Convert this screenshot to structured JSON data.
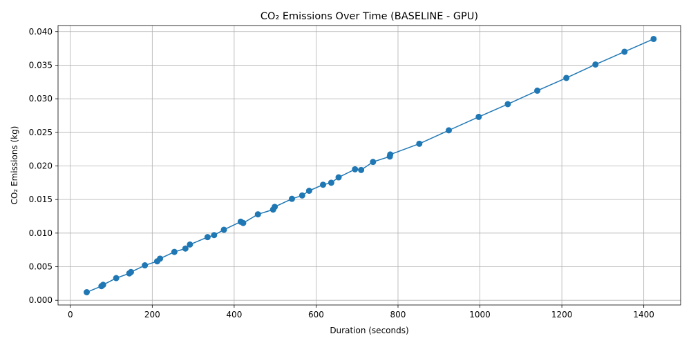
{
  "chart_data": {
    "type": "line",
    "title": "CO₂ Emissions Over Time (BASELINE - GPU)",
    "xlabel": "Duration (seconds)",
    "ylabel": "CO₂ Emissions (kg)",
    "xlim": [
      -30,
      1490
    ],
    "ylim": [
      -0.0007,
      0.0409
    ],
    "xticks": [
      0,
      200,
      400,
      600,
      800,
      1000,
      1200,
      1400
    ],
    "yticks": [
      0.0,
      0.005,
      0.01,
      0.015,
      0.02,
      0.025,
      0.03,
      0.035,
      0.04
    ],
    "xtick_labels": [
      "0",
      "200",
      "400",
      "600",
      "800",
      "1000",
      "1200",
      "1400"
    ],
    "ytick_labels": [
      "0.000",
      "0.005",
      "0.010",
      "0.015",
      "0.020",
      "0.025",
      "0.030",
      "0.035",
      "0.040"
    ],
    "grid": true,
    "legend": "none",
    "series": [
      {
        "color": "#1f77b4",
        "marker": "circle",
        "points": [
          [
            40,
            0.0012
          ],
          [
            76,
            0.0021
          ],
          [
            80,
            0.0023
          ],
          [
            112,
            0.0033
          ],
          [
            144,
            0.004
          ],
          [
            148,
            0.0042
          ],
          [
            182,
            0.0052
          ],
          [
            212,
            0.0058
          ],
          [
            219,
            0.0062
          ],
          [
            254,
            0.0072
          ],
          [
            281,
            0.0077
          ],
          [
            292,
            0.0083
          ],
          [
            335,
            0.0094
          ],
          [
            351,
            0.0097
          ],
          [
            375,
            0.0105
          ],
          [
            416,
            0.0117
          ],
          [
            422,
            0.0115
          ],
          [
            458,
            0.0128
          ],
          [
            495,
            0.0135
          ],
          [
            499,
            0.0139
          ],
          [
            541,
            0.0151
          ],
          [
            566,
            0.0156
          ],
          [
            583,
            0.0163
          ],
          [
            617,
            0.0172
          ],
          [
            637,
            0.0175
          ],
          [
            655,
            0.0183
          ],
          [
            695,
            0.0195
          ],
          [
            710,
            0.0194
          ],
          [
            739,
            0.0206
          ],
          [
            780,
            0.0214
          ],
          [
            781,
            0.0217
          ],
          [
            852,
            0.0233
          ],
          [
            924,
            0.0253
          ],
          [
            997,
            0.0273
          ],
          [
            1068,
            0.0292
          ],
          [
            1140,
            0.0312
          ],
          [
            1211,
            0.0331
          ],
          [
            1282,
            0.0351
          ],
          [
            1353,
            0.037
          ],
          [
            1424,
            0.0389
          ]
        ]
      }
    ]
  }
}
